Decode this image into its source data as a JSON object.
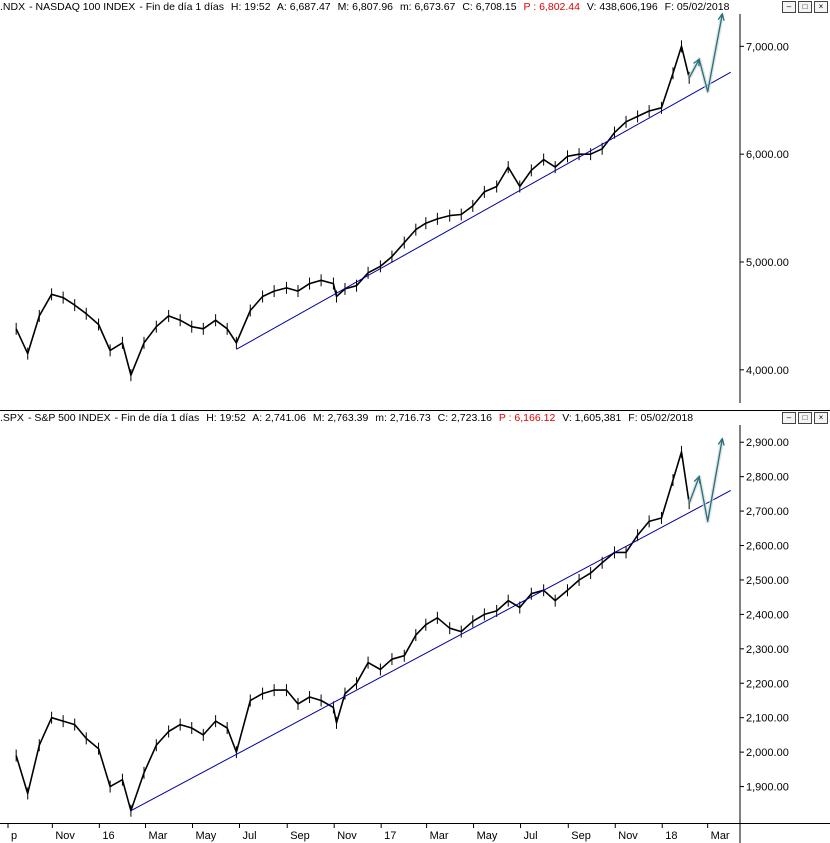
{
  "panes": [
    {
      "header": {
        "symbol": ".NDX",
        "name": "NASDAQ 100 INDEX",
        "period": "Fin de día 1 días",
        "H": "H: 19:52",
        "A": "A: 6,687.47",
        "M": "M: 6,807.96",
        "m": "m: 6,673.67",
        "C": "C: 6,708.15",
        "P": "P : 6,802.44",
        "V": "V: 438,606,196",
        "F": "F: 05/02/2018"
      },
      "y_ticks": [
        "4,000.00",
        "5,000.00",
        "6,000.00",
        "7,000.00"
      ]
    },
    {
      "header": {
        "symbol": ".SPX",
        "name": "S&P 500 INDEX",
        "period": "Fin de día 1 días",
        "H": "H: 19:52",
        "A": "A: 2,741.06",
        "M": "M: 2,763.39",
        "m": "m: 2,716.73",
        "C": "C: 2,723.16",
        "P": "P : 6,166.12",
        "V": "V: 1,605,381",
        "F": "F: 05/02/2018"
      },
      "y_ticks": [
        "1,900.00",
        "2,000.00",
        "2,100.00",
        "2,200.00",
        "2,300.00",
        "2,400.00",
        "2,500.00",
        "2,600.00",
        "2,700.00",
        "2,800.00",
        "2,900.00"
      ]
    }
  ],
  "x_ticks": [
    "p",
    "Nov",
    "16",
    "Mar",
    "May",
    "Jul",
    "Sep",
    "Nov",
    "17",
    "Mar",
    "May",
    "Jul",
    "Sep",
    "Nov",
    "18",
    "Mar"
  ],
  "chart_data": [
    {
      "type": "line",
      "series": [
        {
          "x": [
            "2015-09-15",
            "2015-09-30",
            "2015-10-15",
            "2015-10-31",
            "2015-11-15",
            "2015-11-30",
            "2015-12-15",
            "2015-12-31",
            "2016-01-15",
            "2016-01-31",
            "2016-02-11",
            "2016-02-28",
            "2016-03-15",
            "2016-03-31",
            "2016-04-15",
            "2016-04-30",
            "2016-05-15",
            "2016-05-31",
            "2016-06-15",
            "2016-06-27",
            "2016-07-15",
            "2016-07-31",
            "2016-08-15",
            "2016-08-31",
            "2016-09-15",
            "2016-09-30",
            "2016-10-15",
            "2016-10-31",
            "2016-11-04",
            "2016-11-15",
            "2016-11-30",
            "2016-12-15",
            "2016-12-31",
            "2017-01-15",
            "2017-01-31",
            "2017-02-15",
            "2017-02-28",
            "2017-03-15",
            "2017-03-31",
            "2017-04-15",
            "2017-04-30",
            "2017-05-15",
            "2017-05-31",
            "2017-06-15",
            "2017-06-30",
            "2017-07-15",
            "2017-07-31",
            "2017-08-15",
            "2017-08-31",
            "2017-09-15",
            "2017-09-30",
            "2017-10-15",
            "2017-10-31",
            "2017-11-15",
            "2017-11-30",
            "2017-12-15",
            "2017-12-31",
            "2018-01-15",
            "2018-01-26",
            "2018-02-05"
          ],
          "y": [
            4380,
            4150,
            4500,
            4700,
            4670,
            4600,
            4520,
            4420,
            4180,
            4250,
            3950,
            4250,
            4400,
            4500,
            4460,
            4400,
            4380,
            4460,
            4380,
            4250,
            4550,
            4680,
            4730,
            4760,
            4730,
            4800,
            4830,
            4800,
            4680,
            4750,
            4780,
            4900,
            4960,
            5050,
            5180,
            5300,
            5360,
            5400,
            5430,
            5440,
            5520,
            5650,
            5700,
            5880,
            5700,
            5850,
            5950,
            5880,
            5980,
            6000,
            6000,
            6050,
            6200,
            6300,
            6350,
            6400,
            6430,
            6750,
            7000,
            6708
          ]
        }
      ],
      "trendline": [
        {
          "x": "2016-06-27",
          "y": 4190
        },
        {
          "x": "2018-03-31",
          "y": 6760
        }
      ],
      "projection": [
        {
          "x": "2018-02-05",
          "y": 6708
        },
        {
          "x": "2018-02-18",
          "y": 6880
        },
        {
          "x": "2018-03-01",
          "y": 6580
        },
        {
          "x": "2018-03-20",
          "y": 7300
        }
      ],
      "ylim": [
        3720,
        7300
      ]
    },
    {
      "type": "line",
      "series": [
        {
          "x": [
            "2015-09-15",
            "2015-09-30",
            "2015-10-15",
            "2015-10-31",
            "2015-11-15",
            "2015-11-30",
            "2015-12-15",
            "2015-12-31",
            "2016-01-15",
            "2016-01-31",
            "2016-02-11",
            "2016-02-28",
            "2016-03-15",
            "2016-03-31",
            "2016-04-15",
            "2016-04-30",
            "2016-05-15",
            "2016-05-31",
            "2016-06-15",
            "2016-06-27",
            "2016-07-15",
            "2016-07-31",
            "2016-08-15",
            "2016-08-31",
            "2016-09-15",
            "2016-09-30",
            "2016-10-15",
            "2016-10-31",
            "2016-11-04",
            "2016-11-15",
            "2016-11-30",
            "2016-12-15",
            "2016-12-31",
            "2017-01-15",
            "2017-01-31",
            "2017-02-15",
            "2017-02-28",
            "2017-03-15",
            "2017-03-31",
            "2017-04-15",
            "2017-04-30",
            "2017-05-15",
            "2017-05-31",
            "2017-06-15",
            "2017-06-30",
            "2017-07-15",
            "2017-07-31",
            "2017-08-15",
            "2017-08-31",
            "2017-09-15",
            "2017-09-30",
            "2017-10-15",
            "2017-10-31",
            "2017-11-15",
            "2017-11-30",
            "2017-12-15",
            "2017-12-31",
            "2018-01-15",
            "2018-01-26",
            "2018-02-05"
          ],
          "y": [
            1990,
            1880,
            2020,
            2100,
            2090,
            2080,
            2040,
            2010,
            1900,
            1920,
            1830,
            1940,
            2020,
            2060,
            2080,
            2070,
            2050,
            2090,
            2070,
            2000,
            2150,
            2170,
            2180,
            2180,
            2140,
            2160,
            2150,
            2130,
            2085,
            2170,
            2200,
            2260,
            2240,
            2270,
            2280,
            2340,
            2370,
            2390,
            2360,
            2350,
            2380,
            2400,
            2410,
            2440,
            2420,
            2460,
            2470,
            2440,
            2470,
            2500,
            2520,
            2550,
            2580,
            2580,
            2630,
            2670,
            2680,
            2790,
            2872,
            2723
          ]
        }
      ],
      "trendline": [
        {
          "x": "2016-02-11",
          "y": 1830
        },
        {
          "x": "2018-03-31",
          "y": 2760
        }
      ],
      "projection": [
        {
          "x": "2018-02-05",
          "y": 2723
        },
        {
          "x": "2018-02-18",
          "y": 2800
        },
        {
          "x": "2018-03-01",
          "y": 2670
        },
        {
          "x": "2018-03-20",
          "y": 2910
        }
      ],
      "ylim": [
        1800,
        2950
      ]
    }
  ],
  "colors": {
    "price": "#000000",
    "trend": "#0000a0",
    "projection": "#2a6e78",
    "red": "#e00000"
  }
}
